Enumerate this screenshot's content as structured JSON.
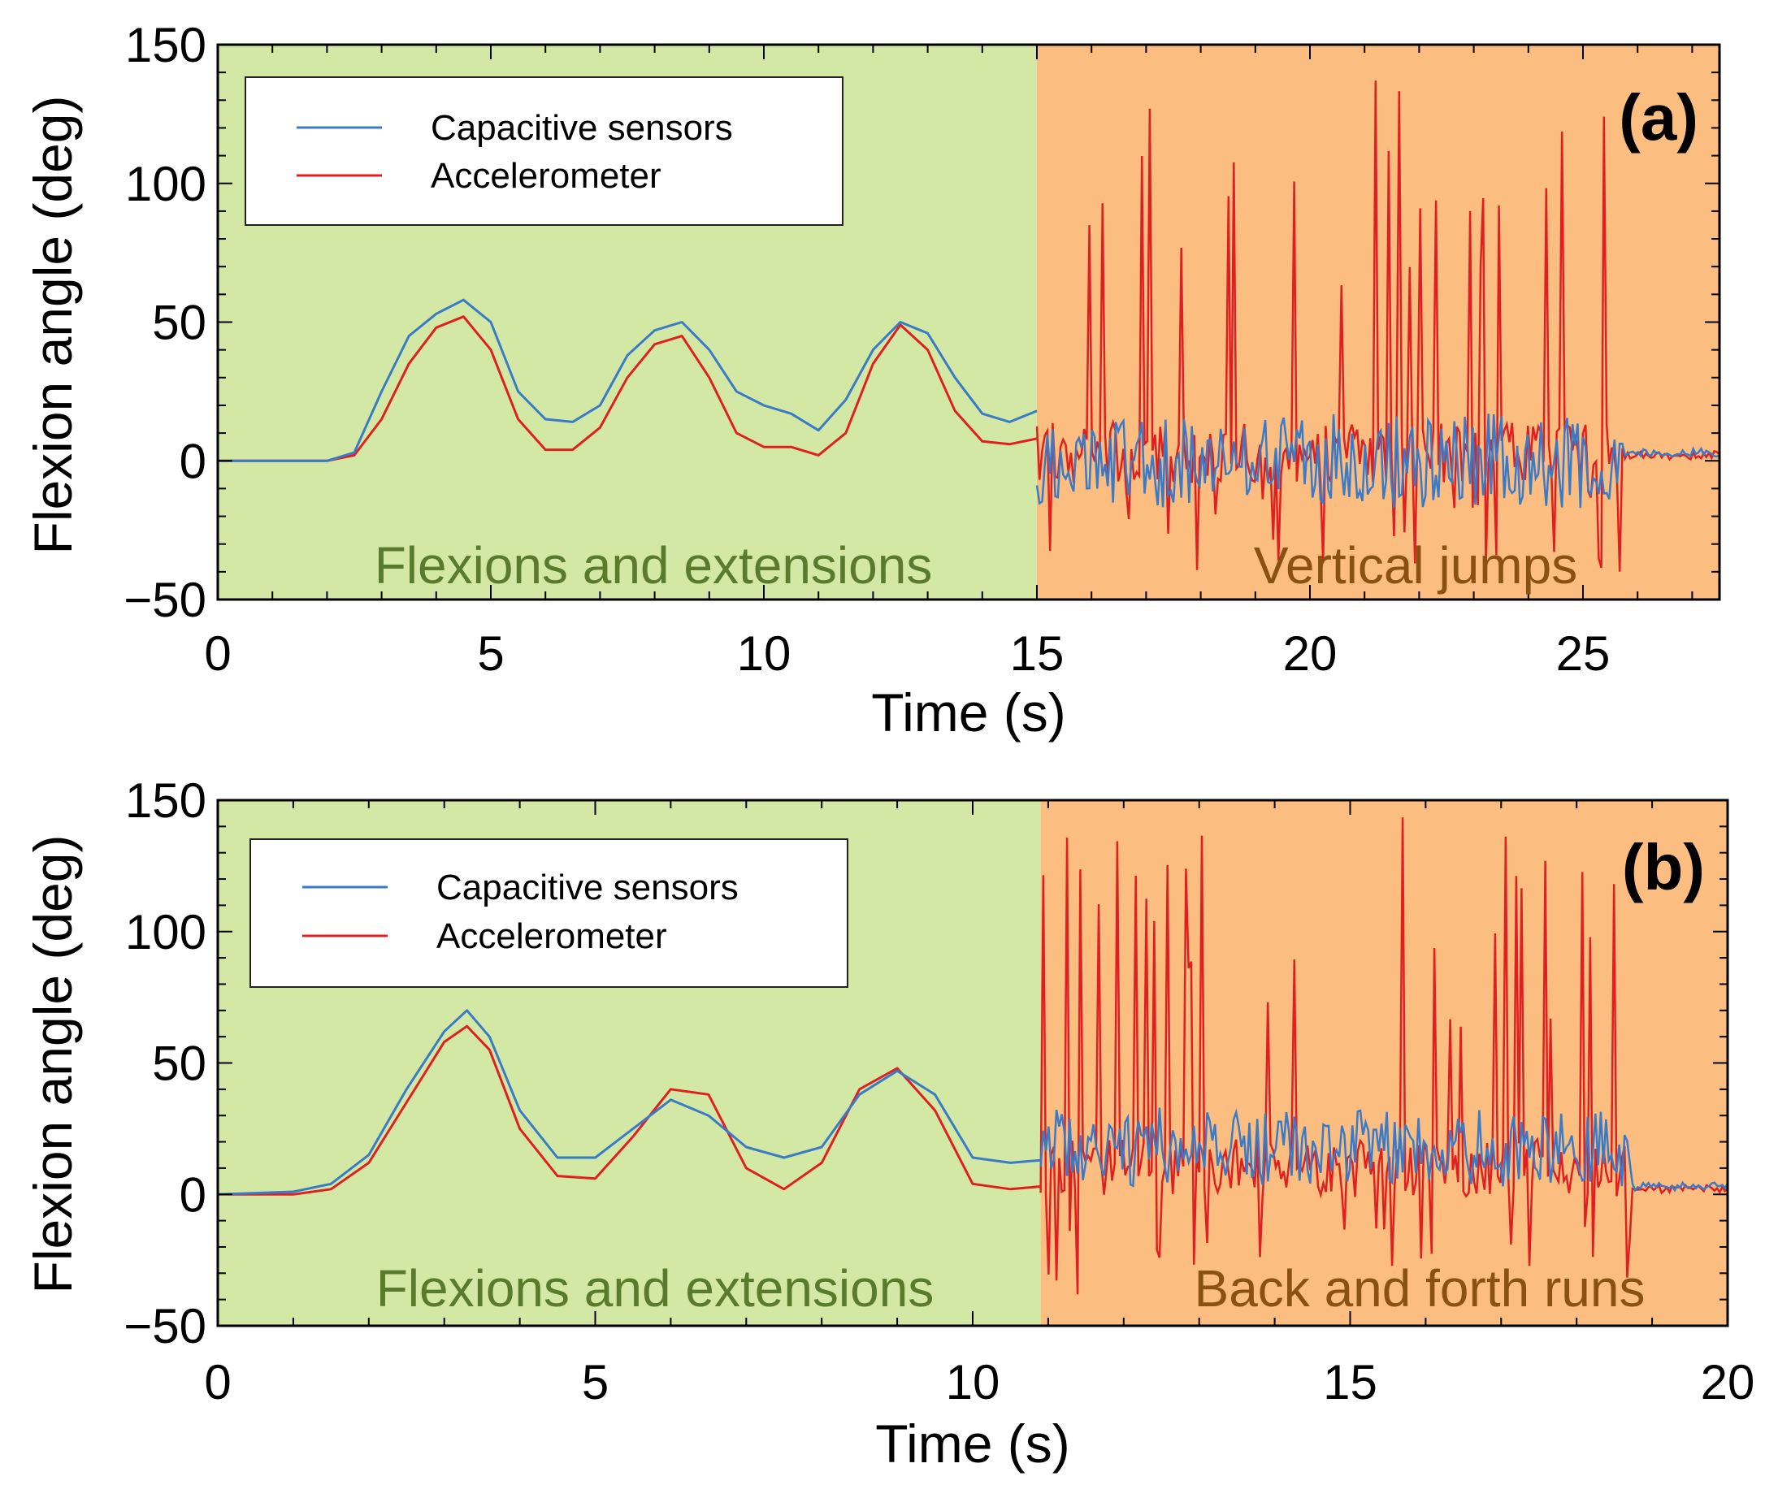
{
  "colors": {
    "capacitive": "#3a7bc8",
    "accelerometer": "#e02020",
    "region_flexion": "#d3e8a4",
    "region_second": "#fbbd80",
    "region_flexion_text": "#5a7a2e",
    "region_second_text": "#8a5212"
  },
  "chart_data": [
    {
      "type": "line",
      "panel_label": "(a)",
      "xlabel": "Time (s)",
      "ylabel": "Flexion angle (deg)",
      "xlim": [
        0,
        27.5
      ],
      "ylim": [
        -50,
        150
      ],
      "xticks": [
        0,
        5,
        10,
        15,
        20,
        25
      ],
      "yticks": [
        -50,
        0,
        50,
        100,
        150
      ],
      "regions": [
        {
          "x_start": 0,
          "x_end": 15,
          "label": "Flexions and extensions",
          "color_key": "region_flexion"
        },
        {
          "x_start": 15,
          "x_end": 27.5,
          "label": "Vertical jumps",
          "color_key": "region_second"
        }
      ],
      "legend": [
        "Capacitive sensors",
        "Accelerometer"
      ],
      "series": [
        {
          "name": "Capacitive sensors",
          "color_key": "capacitive",
          "x": [
            0,
            1,
            2,
            2.5,
            3,
            3.5,
            4,
            4.5,
            5,
            5.5,
            6,
            6.5,
            7,
            7.5,
            8,
            8.5,
            9,
            9.5,
            10,
            10.5,
            11,
            11.5,
            12,
            12.5,
            13,
            13.5,
            14,
            14.5,
            15
          ],
          "y": [
            0,
            0,
            0,
            3,
            25,
            45,
            53,
            58,
            50,
            25,
            15,
            14,
            20,
            38,
            47,
            50,
            40,
            25,
            20,
            17,
            11,
            22,
            40,
            50,
            46,
            30,
            17,
            14,
            18
          ]
        },
        {
          "name": "Accelerometer",
          "color_key": "accelerometer",
          "x": [
            0,
            1,
            2,
            2.5,
            3,
            3.5,
            4,
            4.5,
            5,
            5.5,
            6,
            6.5,
            7,
            7.5,
            8,
            8.5,
            9,
            9.5,
            10,
            10.5,
            11,
            11.5,
            12,
            12.5,
            13,
            13.5,
            14,
            14.5,
            15
          ],
          "y": [
            0,
            0,
            0,
            2,
            15,
            35,
            48,
            52,
            40,
            15,
            4,
            4,
            12,
            30,
            42,
            45,
            30,
            10,
            5,
            5,
            2,
            10,
            35,
            49,
            40,
            18,
            7,
            6,
            8
          ]
        }
      ]
    },
    {
      "type": "line",
      "panel_label": "(b)",
      "xlabel": "Time (s)",
      "ylabel": "Flexion angle (deg)",
      "xlim": [
        0,
        20
      ],
      "ylim": [
        -50,
        150
      ],
      "xticks": [
        0,
        5,
        10,
        15,
        20
      ],
      "yticks": [
        -50,
        0,
        50,
        100,
        150
      ],
      "regions": [
        {
          "x_start": 0,
          "x_end": 10.9,
          "label": "Flexions and extensions",
          "color_key": "region_flexion"
        },
        {
          "x_start": 10.9,
          "x_end": 20,
          "label": "Back and forth runs",
          "color_key": "region_second"
        }
      ],
      "legend": [
        "Capacitive sensors",
        "Accelerometer"
      ],
      "series": [
        {
          "name": "Capacitive sensors",
          "color_key": "capacitive",
          "x": [
            0,
            1,
            1.5,
            2,
            2.5,
            3,
            3.3,
            3.6,
            4,
            4.5,
            5,
            5.5,
            6,
            6.5,
            7,
            7.5,
            8,
            8.5,
            9,
            9.5,
            10,
            10.5,
            10.9
          ],
          "y": [
            0,
            1,
            4,
            15,
            40,
            62,
            70,
            60,
            32,
            14,
            14,
            25,
            36,
            30,
            18,
            14,
            18,
            38,
            47,
            38,
            14,
            12,
            13
          ]
        },
        {
          "name": "Accelerometer",
          "color_key": "accelerometer",
          "x": [
            0,
            1,
            1.5,
            2,
            2.5,
            3,
            3.3,
            3.6,
            4,
            4.5,
            5,
            5.5,
            6,
            6.5,
            7,
            7.5,
            8,
            8.5,
            9,
            9.5,
            10,
            10.5,
            10.9
          ],
          "y": [
            0,
            0,
            2,
            12,
            35,
            58,
            64,
            55,
            25,
            7,
            6,
            22,
            40,
            38,
            10,
            2,
            12,
            40,
            48,
            32,
            4,
            2,
            3
          ]
        }
      ]
    }
  ]
}
